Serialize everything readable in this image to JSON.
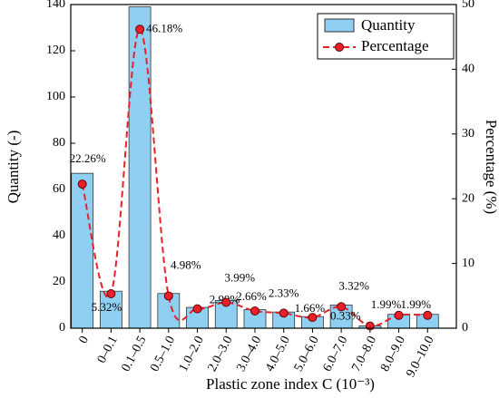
{
  "chart_data": {
    "type": "bar",
    "x_label": "Plastic zone index C (10⁻³)",
    "y_label": "Quantity (-)",
    "y2_label": "Percentage (%)",
    "categories": [
      "0",
      "0–0.1",
      "0.1–0.5",
      "0.5–1.0",
      "1.0–2.0",
      "2.0–3.0",
      "3.0–4.0",
      "4.0–5.0",
      "5.0–6.0",
      "6.0–7.0",
      "7.0–8.0",
      "8.0–9.0",
      "9.0–10.0"
    ],
    "series": [
      {
        "name": "Quantity",
        "type": "bar",
        "color": "#8fd0f2",
        "values": [
          67,
          16,
          139,
          15,
          9,
          12,
          8,
          7,
          5,
          10,
          1,
          6,
          6
        ]
      },
      {
        "name": "Percentage",
        "type": "line",
        "axis": "y2",
        "color": "#e8202a",
        "values": [
          22.26,
          5.32,
          46.18,
          4.98,
          2.99,
          3.99,
          2.66,
          2.33,
          1.66,
          3.32,
          0.33,
          1.99,
          1.99
        ],
        "value_labels": [
          "22.26%",
          "5.32%",
          "46.18%",
          "4.98%",
          "2.99%",
          "3.99%",
          "2.66%",
          "2.33%",
          "1.66%",
          "3.32%",
          "0.33%",
          "1.99%",
          "1.99%"
        ]
      }
    ],
    "ylim": [
      0,
      140
    ],
    "yticks": [
      0,
      20,
      40,
      60,
      80,
      100,
      120,
      140
    ],
    "y2lim": [
      0,
      50
    ],
    "y2ticks": [
      0,
      10,
      20,
      30,
      40,
      50
    ],
    "legend": "upper right"
  }
}
